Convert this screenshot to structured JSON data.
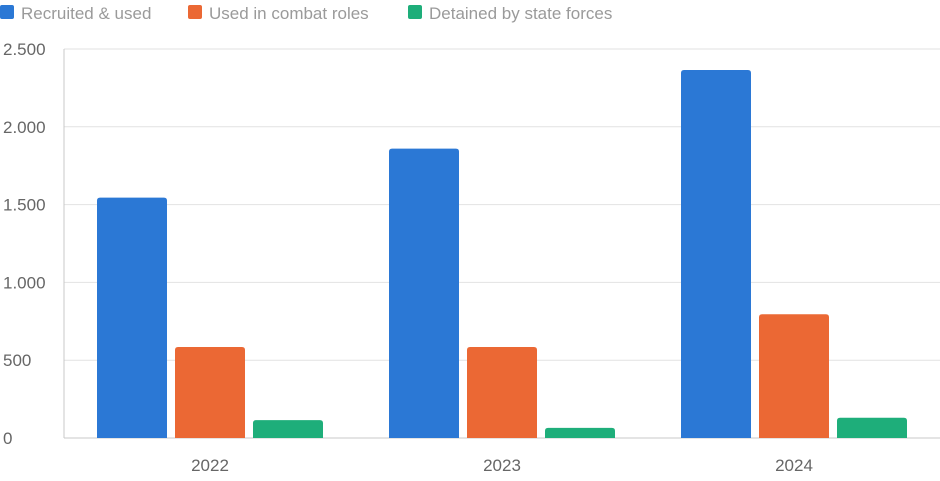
{
  "chart_data": {
    "type": "bar",
    "categories": [
      "2022",
      "2023",
      "2024"
    ],
    "series": [
      {
        "name": "Recruited & used",
        "color": "#2b78d5",
        "values": [
          1545,
          1860,
          2365
        ]
      },
      {
        "name": "Used in combat roles",
        "color": "#eb6834",
        "values": [
          585,
          585,
          795
        ]
      },
      {
        "name": "Detained by state forces",
        "color": "#1eae7a",
        "values": [
          115,
          65,
          130
        ]
      }
    ],
    "ylim": [
      0,
      2500
    ],
    "yticks": [
      0,
      500,
      1000,
      1500,
      2000,
      2500
    ],
    "ytick_labels": [
      "0",
      "500",
      "1.000",
      "1.500",
      "2.000",
      "2.500"
    ],
    "grid": true,
    "legend": "top-left",
    "title": "",
    "xlabel": "",
    "ylabel": ""
  }
}
